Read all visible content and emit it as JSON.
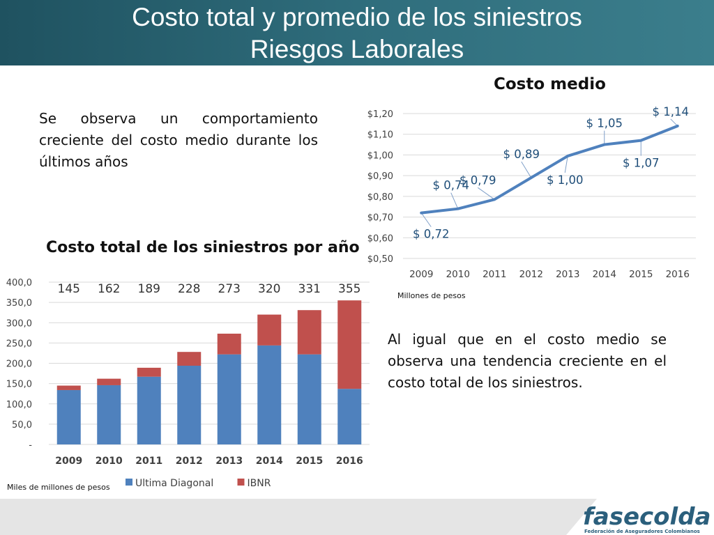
{
  "header": {
    "title_line1": "Costo total y promedio de los siniestros",
    "title_line2": "Riesgos Laborales"
  },
  "paragraph_top": "Se observa un comportamiento creciente del costo medio durante los últimos años",
  "paragraph_bottom": "Al igual que en el costo medio se observa una tendencia creciente en el costo total de los siniestros.",
  "logo": {
    "brand": "fasecolda",
    "tagline": "Federación de Aseguradores Colombianos"
  },
  "colors": {
    "header": "#2f6d7c",
    "line": "#4f81bd",
    "bar_primary": "#4f81bd",
    "bar_secondary": "#c0504d"
  },
  "chart_data": [
    {
      "type": "line",
      "title": "Costo medio",
      "unit_note": "Millones de pesos",
      "x": [
        "2009",
        "2010",
        "2011",
        "2012",
        "2013",
        "2014",
        "2015",
        "2016"
      ],
      "y": [
        0.72,
        0.74,
        0.785,
        0.89,
        0.995,
        1.05,
        1.07,
        1.14
      ],
      "data_labels": [
        "$ 0,72",
        "$ 0,74",
        "$ 0,79",
        "$ 0,89",
        "$ 1,00",
        "$ 1,05",
        "$ 1,07",
        "$ 1,14"
      ],
      "ylim": [
        0.5,
        1.2
      ],
      "yticks": [
        0.5,
        0.6,
        0.7,
        0.8,
        0.9,
        1.0,
        1.1,
        1.2
      ],
      "ytick_labels": [
        "$0,50",
        "$0,60",
        "$0,70",
        "$0,80",
        "$0,90",
        "$1,00",
        "$1,10",
        "$1,20"
      ],
      "grid": true
    },
    {
      "type": "bar",
      "stacked": true,
      "title": "Costo total de los siniestros por año",
      "unit_note": "Miles de millones de pesos",
      "categories": [
        "2009",
        "2010",
        "2011",
        "2012",
        "2013",
        "2014",
        "2015",
        "2016"
      ],
      "series": [
        {
          "name": "Ultima Diagonal",
          "color": "#4f81bd",
          "values": [
            134,
            146,
            167,
            194,
            222,
            244,
            222,
            137
          ]
        },
        {
          "name": "IBNR",
          "color": "#c0504d",
          "values": [
            11,
            16,
            22,
            34,
            51,
            76,
            109,
            218
          ]
        }
      ],
      "totals": [
        "145",
        "162",
        "189",
        "228",
        "273",
        "320",
        "331",
        "355"
      ],
      "ylim": [
        0,
        400
      ],
      "yticks": [
        0,
        50,
        100,
        150,
        200,
        250,
        300,
        350,
        400
      ],
      "ytick_labels": [
        "-",
        "50,0",
        "100,0",
        "150,0",
        "200,0",
        "250,0",
        "300,0",
        "350,0",
        "400,0"
      ],
      "grid": true,
      "legend": "bottom"
    }
  ]
}
